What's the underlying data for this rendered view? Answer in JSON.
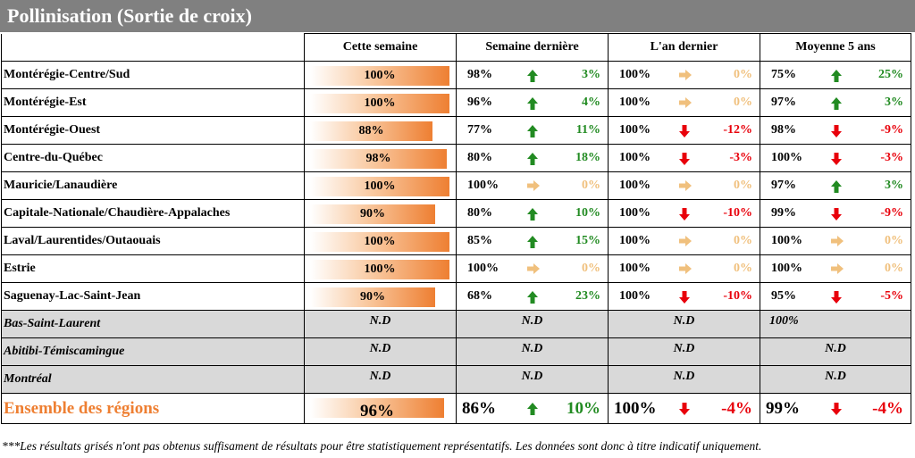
{
  "title": "Pollinisation (Sortie de croix)",
  "headers": [
    "Cette semaine",
    "Semaine dernière",
    "L'an dernier",
    "Moyenne 5 ans"
  ],
  "rows": [
    {
      "region": "Montérégie-Centre/Sud",
      "current": "100%",
      "current_value": 100,
      "last_week": {
        "value": "98%",
        "trend": "up",
        "diff": "3%"
      },
      "last_year": {
        "value": "100%",
        "trend": "flat",
        "diff": "0%"
      },
      "avg5": {
        "value": "75%",
        "trend": "up",
        "diff": "25%"
      }
    },
    {
      "region": "Montérégie-Est",
      "current": "100%",
      "current_value": 100,
      "last_week": {
        "value": "96%",
        "trend": "up",
        "diff": "4%"
      },
      "last_year": {
        "value": "100%",
        "trend": "flat",
        "diff": "0%"
      },
      "avg5": {
        "value": "97%",
        "trend": "up",
        "diff": "3%"
      }
    },
    {
      "region": "Montérégie-Ouest",
      "current": "88%",
      "current_value": 88,
      "last_week": {
        "value": "77%",
        "trend": "up",
        "diff": "11%"
      },
      "last_year": {
        "value": "100%",
        "trend": "down",
        "diff": "-12%"
      },
      "avg5": {
        "value": "98%",
        "trend": "down",
        "diff": "-9%"
      }
    },
    {
      "region": "Centre-du-Québec",
      "current": "98%",
      "current_value": 98,
      "last_week": {
        "value": "80%",
        "trend": "up",
        "diff": "18%"
      },
      "last_year": {
        "value": "100%",
        "trend": "down",
        "diff": "-3%"
      },
      "avg5": {
        "value": "100%",
        "trend": "down",
        "diff": "-3%"
      }
    },
    {
      "region": "Mauricie/Lanaudière",
      "current": "100%",
      "current_value": 100,
      "last_week": {
        "value": "100%",
        "trend": "flat",
        "diff": "0%"
      },
      "last_year": {
        "value": "100%",
        "trend": "flat",
        "diff": "0%"
      },
      "avg5": {
        "value": "97%",
        "trend": "up",
        "diff": "3%"
      }
    },
    {
      "region": "Capitale-Nationale/Chaudière-Appalaches",
      "current": "90%",
      "current_value": 90,
      "last_week": {
        "value": "80%",
        "trend": "up",
        "diff": "10%"
      },
      "last_year": {
        "value": "100%",
        "trend": "down",
        "diff": "-10%"
      },
      "avg5": {
        "value": "99%",
        "trend": "down",
        "diff": "-9%"
      }
    },
    {
      "region": "Laval/Laurentides/Outaouais",
      "current": "100%",
      "current_value": 100,
      "last_week": {
        "value": "85%",
        "trend": "up",
        "diff": "15%"
      },
      "last_year": {
        "value": "100%",
        "trend": "flat",
        "diff": "0%"
      },
      "avg5": {
        "value": "100%",
        "trend": "flat",
        "diff": "0%"
      }
    },
    {
      "region": "Estrie",
      "current": "100%",
      "current_value": 100,
      "last_week": {
        "value": "100%",
        "trend": "flat",
        "diff": "0%"
      },
      "last_year": {
        "value": "100%",
        "trend": "flat",
        "diff": "0%"
      },
      "avg5": {
        "value": "100%",
        "trend": "flat",
        "diff": "0%"
      }
    },
    {
      "region": "Saguenay-Lac-Saint-Jean",
      "current": "90%",
      "current_value": 90,
      "last_week": {
        "value": "68%",
        "trend": "up",
        "diff": "23%"
      },
      "last_year": {
        "value": "100%",
        "trend": "down",
        "diff": "-10%"
      },
      "avg5": {
        "value": "95%",
        "trend": "down",
        "diff": "-5%"
      }
    }
  ],
  "gray_rows": [
    {
      "region": "Bas-Saint-Laurent",
      "current": "N.D",
      "last_week": "N.D",
      "last_year": "N.D",
      "avg5": "100%"
    },
    {
      "region": "Abitibi-Témiscamingue",
      "current": "N.D",
      "last_week": "N.D",
      "last_year": "N.D",
      "avg5": "N.D"
    },
    {
      "region": "Montréal",
      "current": "N.D",
      "last_week": "N.D",
      "last_year": "N.D",
      "avg5": "N.D"
    }
  ],
  "total": {
    "region": "Ensemble des régions",
    "current": "96%",
    "current_value": 96,
    "last_week": {
      "value": "86%",
      "trend": "up",
      "diff": "10%"
    },
    "last_year": {
      "value": "100%",
      "trend": "down",
      "diff": "-4%"
    },
    "avg5": {
      "value": "99%",
      "trend": "down",
      "diff": "-4%"
    }
  },
  "footnote": "***Les résultats grisés n'ont pas obtenus suffisament de résultats pour être statistiquement représentatifs. Les données sont donc à titre indicatif uniquement.",
  "colors": {
    "up": "#228b22",
    "down": "#e8000b",
    "flat": "#f0c07d",
    "accent": "#ee7f32",
    "title_bg": "#808080",
    "gray_row": "#d9d9d9"
  }
}
